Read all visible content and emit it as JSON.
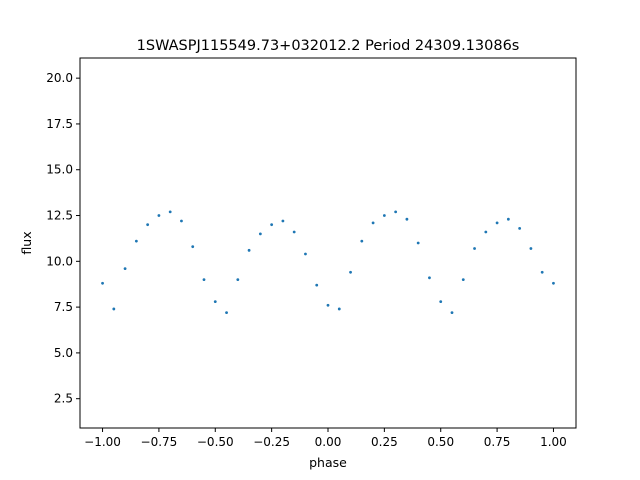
{
  "chart_data": {
    "type": "scatter",
    "title": "1SWASPJ115549.73+032012.2 Period 24309.13086s",
    "xlabel": "phase",
    "ylabel": "flux",
    "xlim": [
      -1.1,
      1.1
    ],
    "ylim": [
      0.9,
      21.1
    ],
    "x_ticks": [
      -1.0,
      -0.75,
      -0.5,
      -0.25,
      0.0,
      0.25,
      0.5,
      0.75,
      1.0
    ],
    "x_tick_labels": [
      "−1.00",
      "−0.75",
      "−0.50",
      "−0.25",
      "0.00",
      "0.25",
      "0.50",
      "0.75",
      "1.00"
    ],
    "y_ticks": [
      2.5,
      5.0,
      7.5,
      10.0,
      12.5,
      15.0,
      17.5,
      20.0
    ],
    "y_tick_labels": [
      "2.5",
      "5.0",
      "7.5",
      "10.0",
      "12.5",
      "15.0",
      "17.5",
      "20.0"
    ],
    "grid": false,
    "marker_color": "#1f77b4",
    "series": [
      {
        "points_x": [
          -1.0,
          -0.95,
          -0.9,
          -0.85,
          -0.8,
          -0.75,
          -0.7,
          -0.65,
          -0.6,
          -0.55,
          -0.5,
          -0.45,
          -0.4,
          -0.35,
          -0.3,
          -0.25,
          -0.2,
          -0.15,
          -0.1,
          -0.05,
          0.0,
          0.05,
          0.1,
          0.15,
          0.2,
          0.25,
          0.3,
          0.35,
          0.4,
          0.45,
          0.5,
          0.55,
          0.6,
          0.65,
          0.7,
          0.75,
          0.8,
          0.85,
          0.9,
          0.95,
          1.0
        ],
        "points_y": [
          8.8,
          7.4,
          9.6,
          11.1,
          12.0,
          12.5,
          12.7,
          12.2,
          10.8,
          9.0,
          7.8,
          7.2,
          9.0,
          10.6,
          11.5,
          12.0,
          12.2,
          11.6,
          10.4,
          8.7,
          7.6,
          7.4,
          9.4,
          11.1,
          12.1,
          12.5,
          12.7,
          12.3,
          11.0,
          9.1,
          7.8,
          7.2,
          9.0,
          10.7,
          11.6,
          12.1,
          12.3,
          11.8,
          10.7,
          9.4,
          8.8
        ]
      }
    ]
  }
}
